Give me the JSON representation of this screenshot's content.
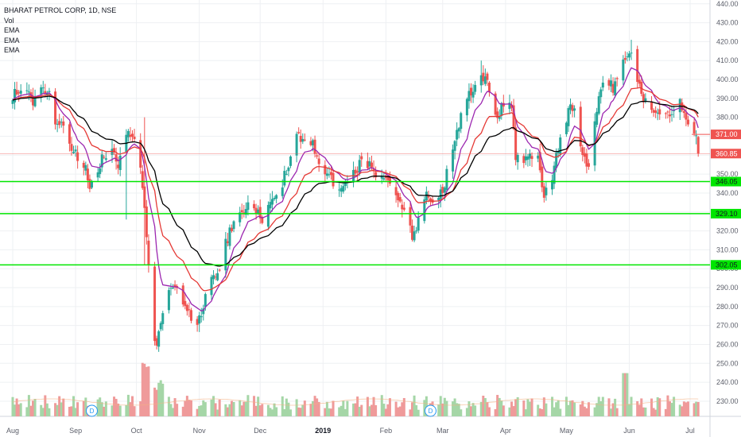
{
  "legend": {
    "title": "BHARAT PETROL CORP, 1D, NSE",
    "indicators": [
      "Vol",
      "EMA",
      "EMA",
      "EMA"
    ]
  },
  "colors": {
    "up": "#26a69a",
    "down": "#ef5350",
    "vol_up": "#a5d6a7",
    "vol_down": "#ef9a9a",
    "ema_fast": "#9c27b0",
    "ema_mid": "#e53935",
    "ema_slow": "#000000",
    "support": "#00e600",
    "price_line": "#ef5350",
    "grid": "#eef0f3",
    "axis_text": "#5d606b"
  },
  "chart_data": {
    "type": "candlestick",
    "symbol": "BHARAT PETROL CORP",
    "interval": "1D",
    "exchange": "NSE",
    "y_axis": {
      "ylim": [
        222,
        442
      ],
      "ticks": [
        230,
        240,
        250,
        260,
        270,
        280,
        290,
        300,
        310,
        320,
        330,
        340,
        350,
        360,
        370,
        380,
        390,
        400,
        410,
        420,
        430,
        440
      ]
    },
    "x_axis": {
      "labels": [
        {
          "label": "Aug",
          "day": 0
        },
        {
          "label": "Sep",
          "day": 31
        },
        {
          "label": "Oct",
          "day": 61
        },
        {
          "label": "Nov",
          "day": 92
        },
        {
          "label": "Dec",
          "day": 122
        },
        {
          "label": "2019",
          "day": 153,
          "bold": true
        },
        {
          "label": "Feb",
          "day": 184
        },
        {
          "label": "Mar",
          "day": 212
        },
        {
          "label": "Apr",
          "day": 243
        },
        {
          "label": "May",
          "day": 273
        },
        {
          "label": "Jun",
          "day": 304
        },
        {
          "label": "Jul",
          "day": 334
        }
      ],
      "last_day": 338
    },
    "horizontal_levels": [
      {
        "value": 346.05,
        "label": "346.05"
      },
      {
        "value": 329.1,
        "label": "329.10"
      },
      {
        "value": 302.05,
        "label": "302.05"
      }
    ],
    "price_tags": [
      {
        "value": 371.0,
        "label": "371.00",
        "kind": "ema"
      },
      {
        "value": 360.85,
        "label": "360.85",
        "kind": "last"
      }
    ],
    "dividend_markers": [
      {
        "day": 39,
        "label": "D"
      },
      {
        "day": 206,
        "label": "D"
      }
    ],
    "anchors": [
      [
        0,
        392
      ],
      [
        5,
        396
      ],
      [
        10,
        388
      ],
      [
        15,
        396
      ],
      [
        18,
        394
      ],
      [
        21,
        378
      ],
      [
        26,
        376
      ],
      [
        29,
        364
      ],
      [
        33,
        356
      ],
      [
        36,
        352
      ],
      [
        38,
        344
      ],
      [
        44,
        358
      ],
      [
        48,
        363
      ],
      [
        52,
        356
      ],
      [
        56,
        372
      ],
      [
        60,
        371
      ],
      [
        62,
        368
      ],
      [
        65,
        330
      ],
      [
        67,
        302
      ],
      [
        69,
        262
      ],
      [
        71,
        258
      ],
      [
        75,
        284
      ],
      [
        79,
        292
      ],
      [
        83,
        282
      ],
      [
        87,
        278
      ],
      [
        90,
        268
      ],
      [
        93,
        276
      ],
      [
        97,
        296
      ],
      [
        101,
        296
      ],
      [
        104,
        310
      ],
      [
        108,
        322
      ],
      [
        112,
        328
      ],
      [
        116,
        333
      ],
      [
        120,
        330
      ],
      [
        124,
        326
      ],
      [
        128,
        338
      ],
      [
        132,
        342
      ],
      [
        136,
        356
      ],
      [
        140,
        372
      ],
      [
        144,
        368
      ],
      [
        148,
        366
      ],
      [
        152,
        352
      ],
      [
        156,
        350
      ],
      [
        160,
        338
      ],
      [
        163,
        344
      ],
      [
        167,
        350
      ],
      [
        171,
        355
      ],
      [
        175,
        356
      ],
      [
        179,
        348
      ],
      [
        183,
        346
      ],
      [
        187,
        342
      ],
      [
        191,
        337
      ],
      [
        194,
        328
      ],
      [
        197,
        316
      ],
      [
        200,
        326
      ],
      [
        204,
        340
      ],
      [
        208,
        336
      ],
      [
        212,
        340
      ],
      [
        215,
        356
      ],
      [
        219,
        372
      ],
      [
        223,
        390
      ],
      [
        227,
        392
      ],
      [
        231,
        402
      ],
      [
        234,
        398
      ],
      [
        237,
        382
      ],
      [
        240,
        382
      ],
      [
        243,
        392
      ],
      [
        246,
        386
      ],
      [
        248,
        360
      ],
      [
        251,
        356
      ],
      [
        255,
        360
      ],
      [
        259,
        358
      ],
      [
        262,
        338
      ],
      [
        265,
        344
      ],
      [
        268,
        360
      ],
      [
        272,
        378
      ],
      [
        275,
        384
      ],
      [
        278,
        384
      ],
      [
        281,
        358
      ],
      [
        284,
        356
      ],
      [
        287,
        376
      ],
      [
        290,
        396
      ],
      [
        293,
        402
      ],
      [
        296,
        394
      ],
      [
        299,
        406
      ],
      [
        302,
        410
      ],
      [
        305,
        414
      ],
      [
        308,
        398
      ],
      [
        311,
        390
      ],
      [
        314,
        384
      ],
      [
        317,
        380
      ],
      [
        320,
        382
      ],
      [
        323,
        380
      ],
      [
        326,
        386
      ],
      [
        329,
        388
      ],
      [
        332,
        381
      ],
      [
        335,
        374
      ],
      [
        337,
        368
      ],
      [
        338,
        360.85
      ]
    ]
  }
}
